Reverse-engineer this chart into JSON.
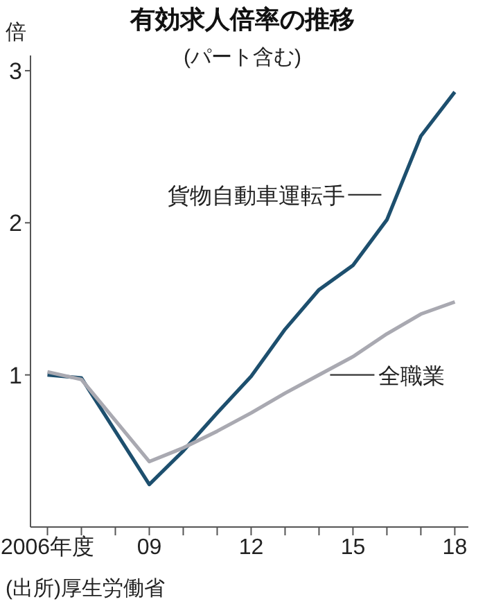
{
  "chart_data": {
    "type": "line",
    "title": "有効求人倍率の推移",
    "subtitle": "(パート含む)",
    "ylabel": "倍",
    "annotations": [
      "(出所)厚生労働省"
    ],
    "x": [
      2006,
      2007,
      2008,
      2009,
      2010,
      2011,
      2012,
      2013,
      2014,
      2015,
      2016,
      2017,
      2018
    ],
    "xlim": [
      2005.5,
      2018.4
    ],
    "xticks": [
      {
        "value": 2006,
        "label": "2006年度"
      },
      {
        "value": 2007,
        "label": null
      },
      {
        "value": 2008,
        "label": null
      },
      {
        "value": 2009,
        "label": "09"
      },
      {
        "value": 2010,
        "label": null
      },
      {
        "value": 2011,
        "label": null
      },
      {
        "value": 2012,
        "label": "12"
      },
      {
        "value": 2013,
        "label": null
      },
      {
        "value": 2014,
        "label": null
      },
      {
        "value": 2015,
        "label": "15"
      },
      {
        "value": 2016,
        "label": null
      },
      {
        "value": 2017,
        "label": null
      },
      {
        "value": 2018,
        "label": "18"
      }
    ],
    "ylim": [
      0,
      3.1
    ],
    "yticks": [
      1,
      2,
      3
    ],
    "marker": "none",
    "series": [
      {
        "name": "貨物自動車運転手",
        "color": "#1d4f6e",
        "values": [
          1.0,
          0.98,
          0.63,
          0.28,
          0.5,
          0.75,
          0.99,
          1.3,
          1.56,
          1.72,
          2.02,
          2.57,
          2.86
        ]
      },
      {
        "name": "全職業",
        "color": "#a9a9b1",
        "values": [
          1.02,
          0.97,
          0.7,
          0.43,
          0.52,
          0.63,
          0.75,
          0.88,
          1.0,
          1.12,
          1.27,
          1.4,
          1.48
        ]
      }
    ]
  }
}
